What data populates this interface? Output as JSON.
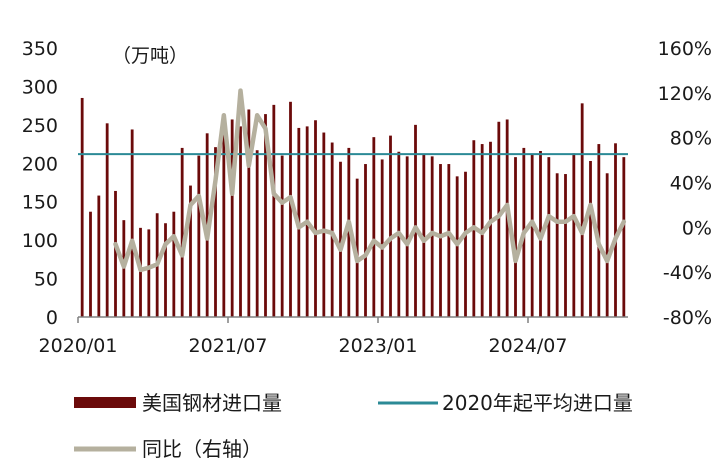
{
  "chart_data": {
    "type": "bar",
    "unit_label": "（万吨）",
    "ylim": [
      0,
      350
    ],
    "y_ticks": [
      "0",
      "50",
      "100",
      "150",
      "200",
      "250",
      "300",
      "350"
    ],
    "y2lim": [
      -80,
      160
    ],
    "y2_ticks": [
      "-80%",
      "-40%",
      "0%",
      "40%",
      "80%",
      "120%",
      "160%"
    ],
    "x_ticks": [
      "2020/01",
      "2021/07",
      "2023/01",
      "2024/07"
    ],
    "x_tick_months": [
      0,
      18,
      36,
      54
    ],
    "months": 66,
    "colors": {
      "bars": "#6b0a0a",
      "avg": "#2b8a96",
      "yoy": "#b5b09e"
    },
    "series": [
      {
        "name": "美国钢材进口量",
        "kind": "bar",
        "axis": "left",
        "values": [
          285,
          137,
          158,
          252,
          164,
          126,
          244,
          116,
          114,
          135,
          122,
          137,
          220,
          171,
          210,
          239,
          221,
          241,
          257,
          248,
          270,
          217,
          264,
          276,
          210,
          280,
          246,
          248,
          256,
          240,
          227,
          202,
          220,
          180,
          199,
          234,
          205,
          236,
          215,
          209,
          250,
          212,
          209,
          199,
          199,
          183,
          189,
          230,
          225,
          228,
          254,
          257,
          208,
          220,
          211,
          216,
          208,
          187,
          186,
          213,
          278,
          203,
          225,
          187,
          226,
          208
        ]
      },
      {
        "name": "同比（右轴）",
        "kind": "line",
        "axis": "right",
        "values": [
          null,
          null,
          null,
          null,
          -15,
          -35,
          -12,
          -38,
          -36,
          -33,
          -15,
          -8,
          -25,
          20,
          28,
          -10,
          42,
          100,
          30,
          122,
          55,
          100,
          88,
          30,
          22,
          27,
          0,
          5,
          -5,
          -3,
          -5,
          -20,
          5,
          -30,
          -25,
          -12,
          -18,
          -10,
          -5,
          -15,
          0,
          -12,
          -5,
          -8,
          -5,
          -15,
          -5,
          0,
          -5,
          5,
          10,
          20,
          -30,
          -5,
          5,
          -10,
          10,
          5,
          5,
          10,
          -5,
          20,
          -15,
          -30,
          -10,
          5
        ]
      },
      {
        "name": "2020年起平均进口量",
        "kind": "hline",
        "axis": "left",
        "value": 212
      }
    ],
    "legend": {
      "bars": "美国钢材进口量",
      "avg": "2020年起平均进口量",
      "yoy": "同比（右轴）"
    },
    "legend_placement": "bottom"
  }
}
